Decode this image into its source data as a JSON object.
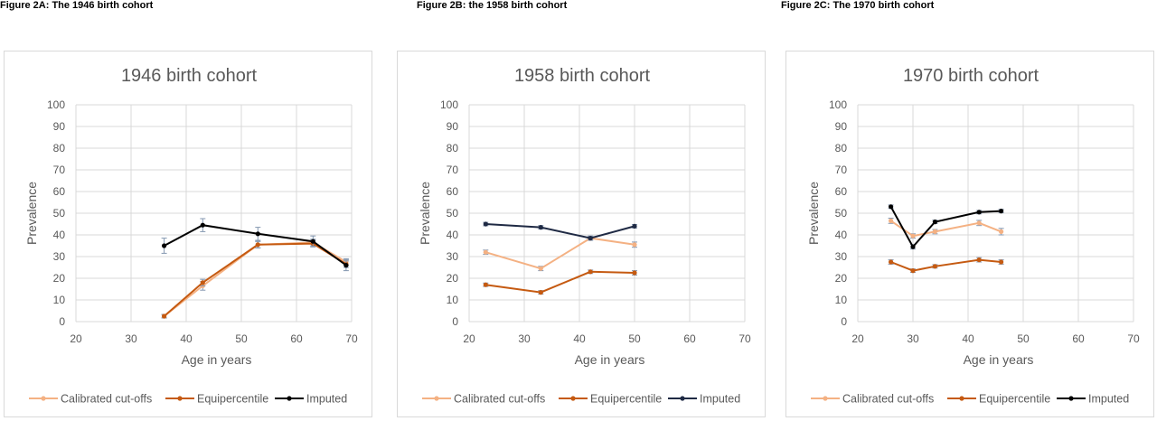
{
  "figures": [
    {
      "heading": "Figure 2A: The 1946 birth cohort"
    },
    {
      "heading": "Figure 2B: the 1958 birth cohort"
    },
    {
      "heading": "Figure 2C: The 1970 birth cohort"
    }
  ],
  "colors": {
    "calibrated": "#f4b183",
    "equipercentile": "#c55a11",
    "imputed_1946": "#000000",
    "imputed_1958": "#1f2a44",
    "imputed_1970": "#000000",
    "errorbar": "#8497b0",
    "grid": "#d9d9d9"
  },
  "chart_data": [
    {
      "type": "line",
      "title": "1946 birth cohort",
      "xlabel": "Age in years",
      "ylabel": "Prevalence",
      "xlim": [
        20,
        70
      ],
      "ylim": [
        0,
        100
      ],
      "xticks": [
        "20",
        "30",
        "40",
        "50",
        "60",
        "70"
      ],
      "yticks": [
        "0",
        "10",
        "20",
        "30",
        "40",
        "50",
        "60",
        "70",
        "80",
        "90",
        "100"
      ],
      "grid": true,
      "legend": "bottom",
      "series": [
        {
          "name": "Calibrated cut-offs",
          "color": "#f4b183",
          "x": [
            36,
            43,
            53,
            63,
            69
          ],
          "y": [
            2.5,
            16.5,
            35.5,
            36.5,
            27.5
          ],
          "err": [
            0.8,
            2.0,
            1.5,
            1.5,
            1.5
          ]
        },
        {
          "name": "Equipercentile",
          "color": "#c55a11",
          "x": [
            36,
            43,
            53,
            63,
            69
          ],
          "y": [
            2.5,
            18,
            35.5,
            36,
            26.5
          ],
          "err": [
            0.8,
            1.5,
            1.5,
            1.5,
            1.5
          ]
        },
        {
          "name": "Imputed",
          "color": "#000000",
          "x": [
            36,
            43,
            53,
            63,
            69
          ],
          "y": [
            35,
            44.5,
            40.5,
            37,
            26
          ],
          "err": [
            3.5,
            3.0,
            3.0,
            2.5,
            2.5
          ]
        }
      ]
    },
    {
      "type": "line",
      "title": "1958 birth cohort",
      "xlabel": "Age in years",
      "ylabel": "Prevalence",
      "xlim": [
        20,
        70
      ],
      "ylim": [
        0,
        100
      ],
      "xticks": [
        "20",
        "30",
        "40",
        "50",
        "60",
        "70"
      ],
      "yticks": [
        "0",
        "10",
        "20",
        "30",
        "40",
        "50",
        "60",
        "70",
        "80",
        "90",
        "100"
      ],
      "grid": true,
      "legend": "bottom",
      "series": [
        {
          "name": "Calibrated cut-offs",
          "color": "#f4b183",
          "x": [
            23,
            33,
            42,
            50
          ],
          "y": [
            32,
            24.5,
            38.5,
            35.5
          ],
          "err": [
            1.0,
            1.0,
            1.0,
            1.2
          ]
        },
        {
          "name": "Equipercentile",
          "color": "#c55a11",
          "x": [
            23,
            33,
            42,
            50
          ],
          "y": [
            17,
            13.5,
            23,
            22.5
          ],
          "err": [
            0.8,
            0.8,
            0.8,
            1.0
          ]
        },
        {
          "name": "Imputed",
          "color": "#1f2a44",
          "x": [
            23,
            33,
            42,
            50
          ],
          "y": [
            45,
            43.5,
            38.5,
            44
          ],
          "err": [
            0.8,
            0.8,
            0.8,
            0.8
          ]
        }
      ]
    },
    {
      "type": "line",
      "title": "1970 birth cohort",
      "xlabel": "Age in years",
      "ylabel": "Prevalence",
      "xlim": [
        20,
        70
      ],
      "ylim": [
        0,
        100
      ],
      "xticks": [
        "20",
        "30",
        "40",
        "50",
        "60",
        "70"
      ],
      "yticks": [
        "0",
        "10",
        "20",
        "30",
        "40",
        "50",
        "60",
        "70",
        "80",
        "90",
        "100"
      ],
      "grid": true,
      "legend": "bottom",
      "series": [
        {
          "name": "Calibrated cut-offs",
          "color": "#f4b183",
          "x": [
            26,
            30,
            34,
            42,
            46
          ],
          "y": [
            46.5,
            39.5,
            41.5,
            45.5,
            41.5
          ],
          "err": [
            1.2,
            1.0,
            1.0,
            1.2,
            1.5
          ]
        },
        {
          "name": "Equipercentile",
          "color": "#c55a11",
          "x": [
            26,
            30,
            34,
            42,
            46
          ],
          "y": [
            27.5,
            23.5,
            25.5,
            28.5,
            27.5
          ],
          "err": [
            1.0,
            0.8,
            0.8,
            1.0,
            1.0
          ]
        },
        {
          "name": "Imputed",
          "color": "#000000",
          "x": [
            26,
            30,
            34,
            42,
            46
          ],
          "y": [
            53,
            34.5,
            46,
            50.5,
            51
          ],
          "err": [
            0.8,
            1.0,
            0.8,
            0.8,
            0.8
          ]
        }
      ]
    }
  ]
}
